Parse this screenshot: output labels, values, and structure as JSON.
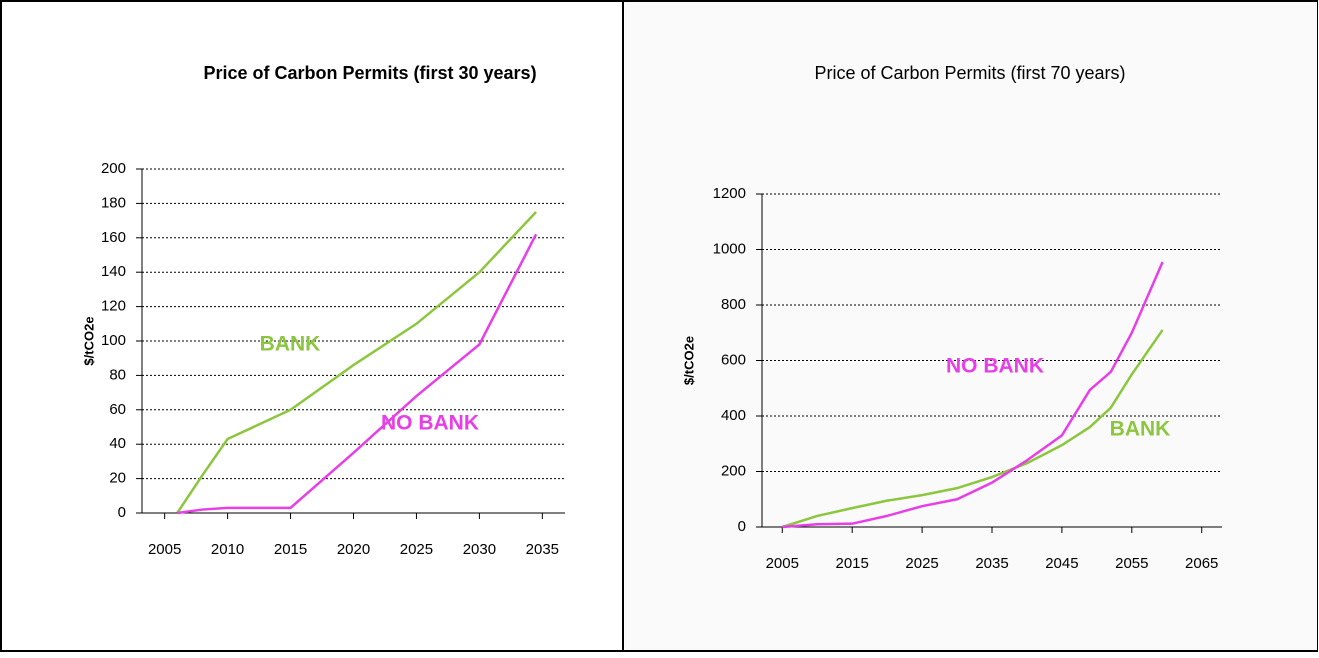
{
  "chart_data": [
    {
      "type": "line",
      "title": "Price of Carbon Permits (first 30 years)",
      "y_label": "$/tCO2e",
      "xlim": [
        2003.2,
        2036.8
      ],
      "xticks": [
        2005,
        2010,
        2015,
        2020,
        2025,
        2030,
        2035
      ],
      "ylim": [
        0,
        200
      ],
      "yticks": [
        0,
        20,
        40,
        60,
        80,
        100,
        120,
        140,
        160,
        180,
        200
      ],
      "grid": true,
      "x": [
        2006,
        2008,
        2010,
        2015,
        2020,
        2025,
        2030,
        2034.5
      ],
      "series": [
        {
          "name": "BANK",
          "color": "#8cc63f",
          "values": [
            0,
            22,
            43,
            60,
            86,
            110,
            140,
            175
          ]
        },
        {
          "name": "NO BANK",
          "color": "#e83ee8",
          "values": [
            0,
            2,
            3,
            3,
            35,
            68,
            98,
            162
          ]
        }
      ]
    },
    {
      "type": "line",
      "title": "Price of Carbon Permits (first 70 years)",
      "y_label": "$/tCO2e",
      "xlim": [
        2002.1,
        2067.9
      ],
      "xticks": [
        2005,
        2015,
        2025,
        2035,
        2045,
        2055,
        2065
      ],
      "ylim": [
        0,
        1200
      ],
      "yticks": [
        0,
        200,
        400,
        600,
        800,
        1000,
        1200
      ],
      "grid": true,
      "x": [
        2005,
        2010,
        2015,
        2020,
        2025,
        2030,
        2035,
        2040,
        2045,
        2049,
        2052,
        2055,
        2059.4
      ],
      "series": [
        {
          "name": "BANK",
          "color": "#8cc63f",
          "values": [
            0,
            40,
            68,
            95,
            115,
            140,
            180,
            230,
            295,
            360,
            430,
            550,
            710
          ]
        },
        {
          "name": "NO BANK",
          "color": "#e83ee8",
          "values": [
            0,
            10,
            12,
            40,
            75,
            100,
            160,
            240,
            330,
            494,
            559,
            700,
            955
          ]
        }
      ]
    }
  ]
}
